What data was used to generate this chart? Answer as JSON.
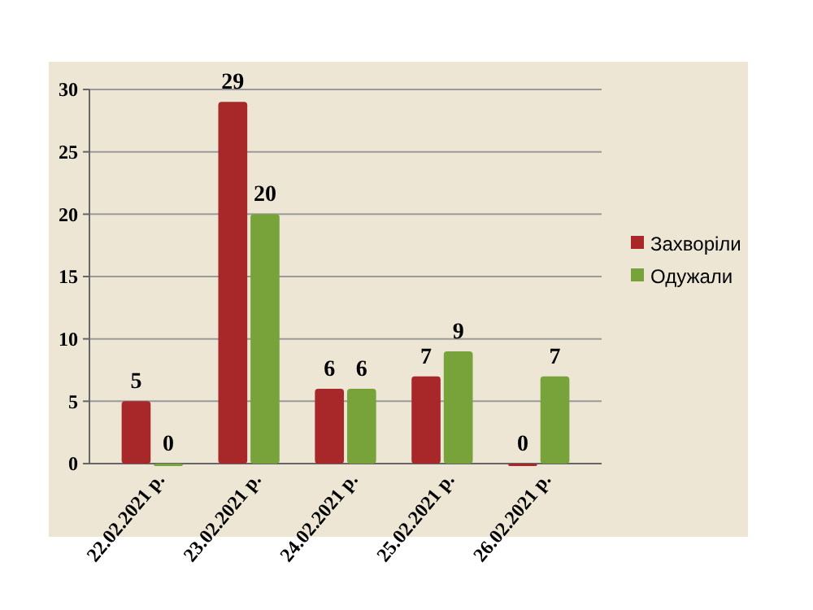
{
  "chart_data": {
    "type": "bar",
    "categories": [
      "22.02.2021 р.",
      "23.02.2021 р.",
      "24.02.2021 р.",
      "25.02.2021 р.",
      "26.02.2021 р."
    ],
    "series": [
      {
        "name": "Захворіли",
        "color": "#a8282a",
        "values": [
          5,
          29,
          6,
          7,
          0
        ]
      },
      {
        "name": "Одужали",
        "color": "#78a33a",
        "values": [
          0,
          20,
          6,
          9,
          7
        ]
      }
    ],
    "ylim": [
      0,
      30
    ],
    "yticks": [
      0,
      5,
      10,
      15,
      20,
      25,
      30
    ],
    "grid": "y",
    "legend": "right",
    "data_labels": true
  }
}
